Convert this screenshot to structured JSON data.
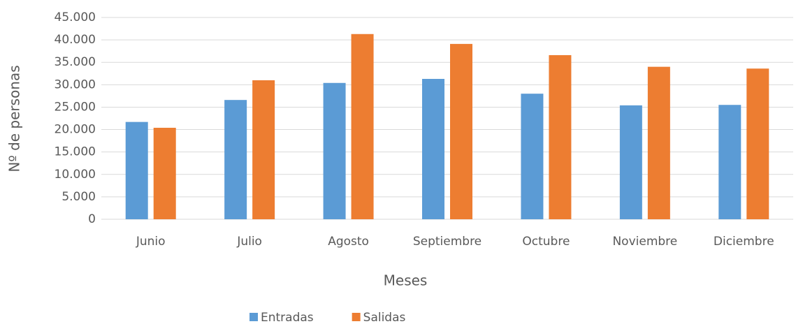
{
  "chart_data": {
    "type": "bar",
    "categories": [
      "Junio",
      "Julio",
      "Agosto",
      "Septiembre",
      "Octubre",
      "Noviembre",
      "Diciembre"
    ],
    "series": [
      {
        "name": "Entradas",
        "color": "#5b9bd5",
        "values": [
          21700,
          26600,
          30400,
          31300,
          28000,
          25400,
          25500
        ]
      },
      {
        "name": "Salidas",
        "color": "#ed7d31",
        "values": [
          20400,
          31000,
          41300,
          39100,
          36600,
          34000,
          33600
        ]
      }
    ],
    "x_label": "Meses",
    "y_label": "Nº de personas",
    "ylim": [
      0,
      45000
    ],
    "yticks": [
      0,
      {
        "value": 5000,
        "label": "5.000"
      },
      {
        "value": 10000,
        "label": "10.000"
      },
      {
        "value": 15000,
        "label": "15.000"
      },
      {
        "value": 20000,
        "label": "20.000"
      },
      {
        "value": 25000,
        "label": "25.000"
      },
      {
        "value": 30000,
        "label": "30.000"
      },
      {
        "value": 35000,
        "label": "35.000"
      },
      {
        "value": 40000,
        "label": "40.000"
      },
      {
        "value": 45000,
        "label": "45.000"
      }
    ],
    "grid": true,
    "legend": "bottom"
  }
}
